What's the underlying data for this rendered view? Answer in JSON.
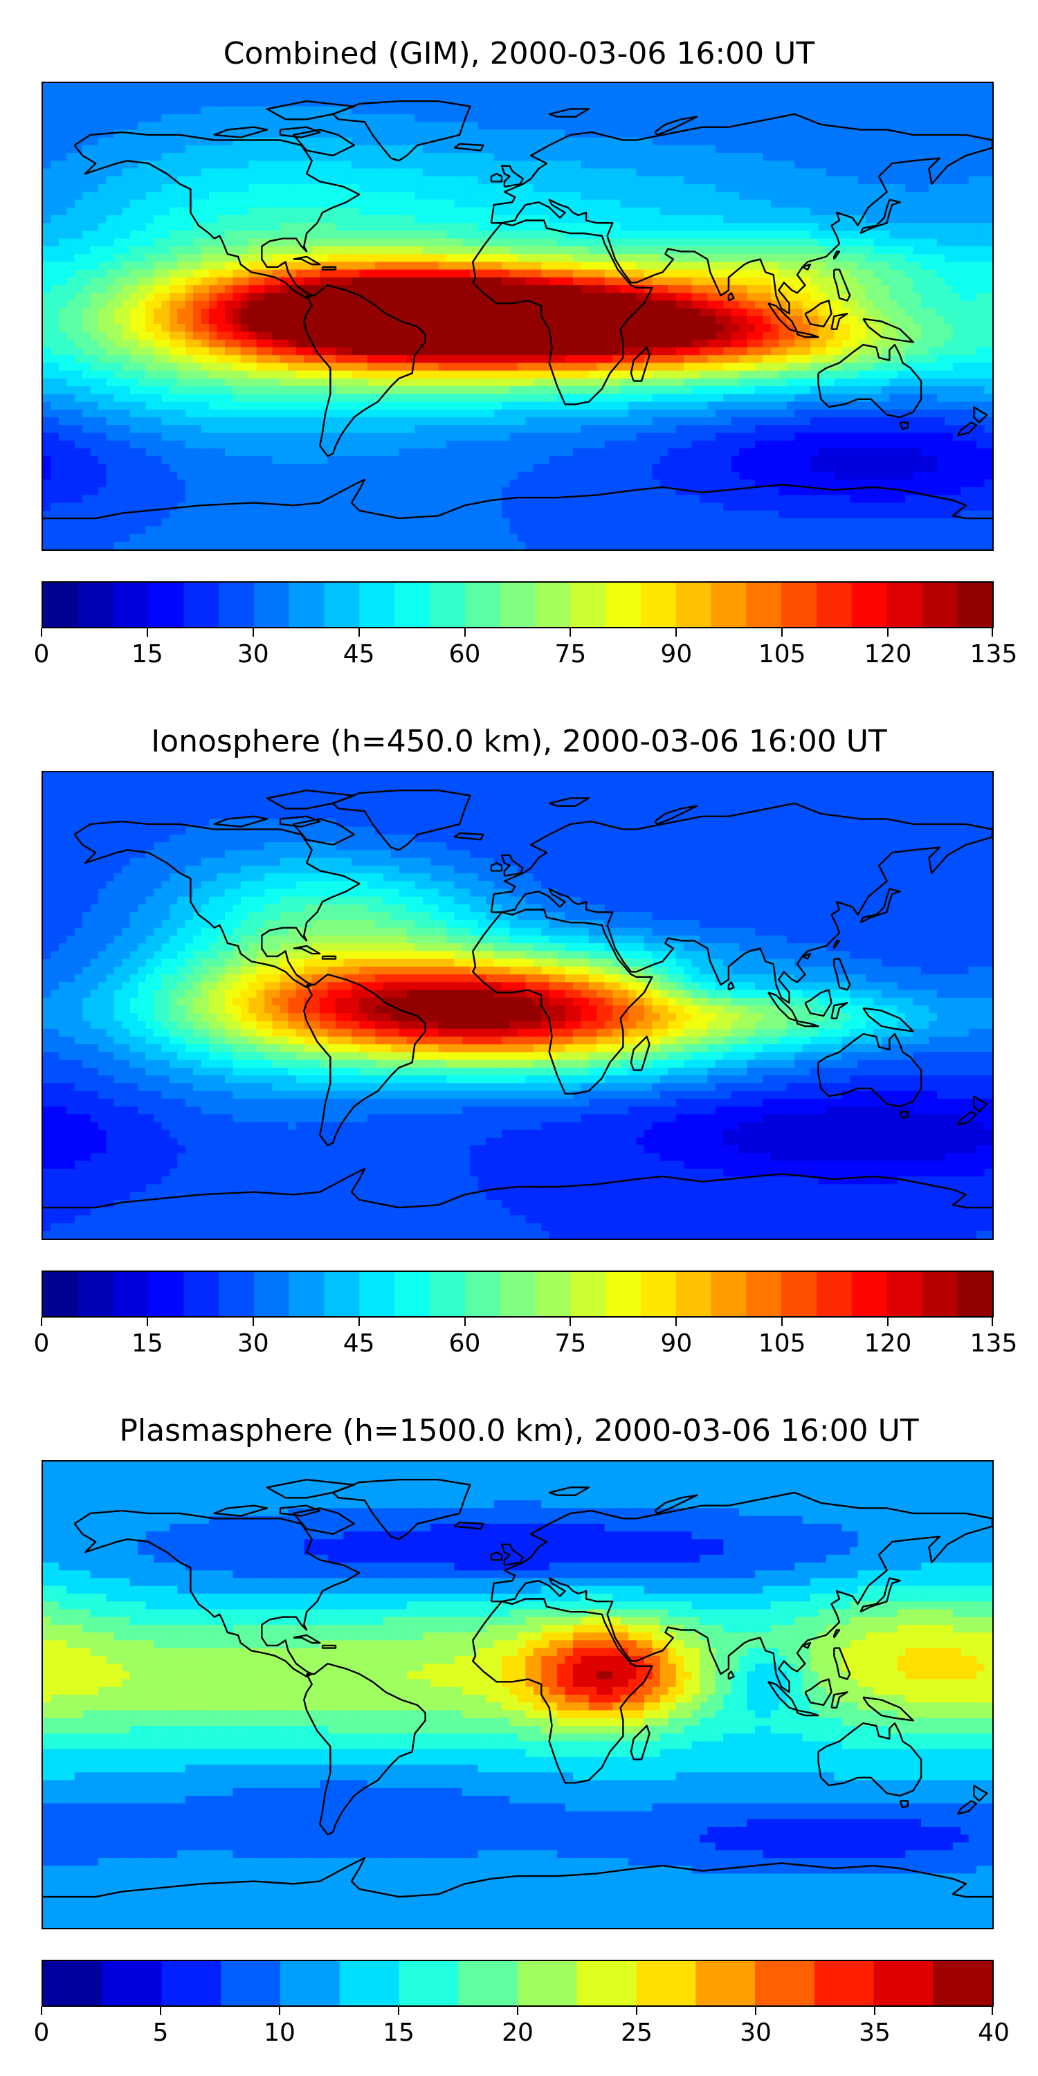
{
  "panels": [
    {
      "id": "combined",
      "title": "Combined (GIM), 2000-03-06 16:00 UT",
      "colorbar": {
        "min": 0,
        "max": 135,
        "levels": 27,
        "tick_labels": [
          "0",
          "15",
          "30",
          "45",
          "60",
          "75",
          "90",
          "105",
          "120",
          "135"
        ]
      },
      "background_value": 30,
      "features": [
        {
          "lon": -45,
          "lat": 2,
          "v": 62,
          "rlon": 55,
          "rlat": 12
        },
        {
          "lon": -10,
          "lat": 0,
          "v": 55,
          "rlon": 70,
          "rlat": 14
        },
        {
          "lon": 5,
          "lat": -8,
          "v": 45,
          "rlon": 90,
          "rlat": 18
        },
        {
          "lon": 50,
          "lat": -5,
          "v": 30,
          "rlon": 50,
          "rlat": 10
        },
        {
          "lon": 110,
          "lat": 18,
          "v": 25,
          "rlon": 40,
          "rlat": 10
        },
        {
          "lon": 110,
          "lat": -10,
          "v": 20,
          "rlon": 40,
          "rlat": 10
        },
        {
          "lon": -100,
          "lat": 10,
          "v": 20,
          "rlon": 50,
          "rlat": 40
        },
        {
          "lon": 0,
          "lat": 40,
          "v": 15,
          "rlon": 90,
          "rlat": 20
        },
        {
          "lon": -150,
          "lat": -10,
          "v": 8,
          "rlon": 40,
          "rlat": 30
        },
        {
          "lon": 140,
          "lat": -55,
          "v": -18,
          "rlon": 60,
          "rlat": 15
        }
      ]
    },
    {
      "id": "ionosphere",
      "title": "Ionosphere  (h=450.0 km), 2000-03-06 16:00 UT",
      "colorbar": {
        "min": 0,
        "max": 135,
        "levels": 27,
        "tick_labels": [
          "0",
          "15",
          "30",
          "45",
          "60",
          "75",
          "90",
          "105",
          "120",
          "135"
        ]
      },
      "background_value": 25,
      "features": [
        {
          "lon": -40,
          "lat": 0,
          "v": 55,
          "rlon": 60,
          "rlat": 14
        },
        {
          "lon": 0,
          "lat": 0,
          "v": 45,
          "rlon": 70,
          "rlat": 16
        },
        {
          "lon": 10,
          "lat": -10,
          "v": 25,
          "rlon": 50,
          "rlat": 14
        },
        {
          "lon": -60,
          "lat": 35,
          "v": 25,
          "rlon": 40,
          "rlat": 15
        },
        {
          "lon": 110,
          "lat": -5,
          "v": 20,
          "rlon": 40,
          "rlat": 8
        },
        {
          "lon": 75,
          "lat": 8,
          "v": -15,
          "rlon": 18,
          "rlat": 6
        },
        {
          "lon": -100,
          "lat": 10,
          "v": 15,
          "rlon": 40,
          "rlat": 40
        },
        {
          "lon": 130,
          "lat": -50,
          "v": -15,
          "rlon": 60,
          "rlat": 12
        }
      ]
    },
    {
      "id": "plasmasphere",
      "title": "Plasmasphere (h=1500.0 km), 2000-03-06 16:00 UT",
      "colorbar": {
        "min": 0,
        "max": 40,
        "levels": 16,
        "tick_labels": [
          "0",
          "5",
          "10",
          "15",
          "20",
          "25",
          "30",
          "35",
          "40"
        ]
      },
      "background_value": 12,
      "features": [
        {
          "lon": 35,
          "lat": 8,
          "v": 18,
          "rlon": 22,
          "rlat": 14
        },
        {
          "lon": 0,
          "lat": 10,
          "v": 8,
          "rlon": 60,
          "rlat": 22
        },
        {
          "lon": -120,
          "lat": 5,
          "v": 8,
          "rlon": 70,
          "rlat": 18
        },
        {
          "lon": 150,
          "lat": 15,
          "v": 10,
          "rlon": 40,
          "rlat": 20
        },
        {
          "lon": 95,
          "lat": 5,
          "v": -6,
          "rlon": 10,
          "rlat": 8
        },
        {
          "lon": 0,
          "lat": 55,
          "v": -7,
          "rlon": 100,
          "rlat": 12
        },
        {
          "lon": -60,
          "lat": -45,
          "v": -4,
          "rlon": 60,
          "rlat": 15
        },
        {
          "lon": 120,
          "lat": -55,
          "v": -6,
          "rlon": 60,
          "rlat": 10
        }
      ]
    }
  ],
  "colormap": "jet",
  "coastlines": true
}
